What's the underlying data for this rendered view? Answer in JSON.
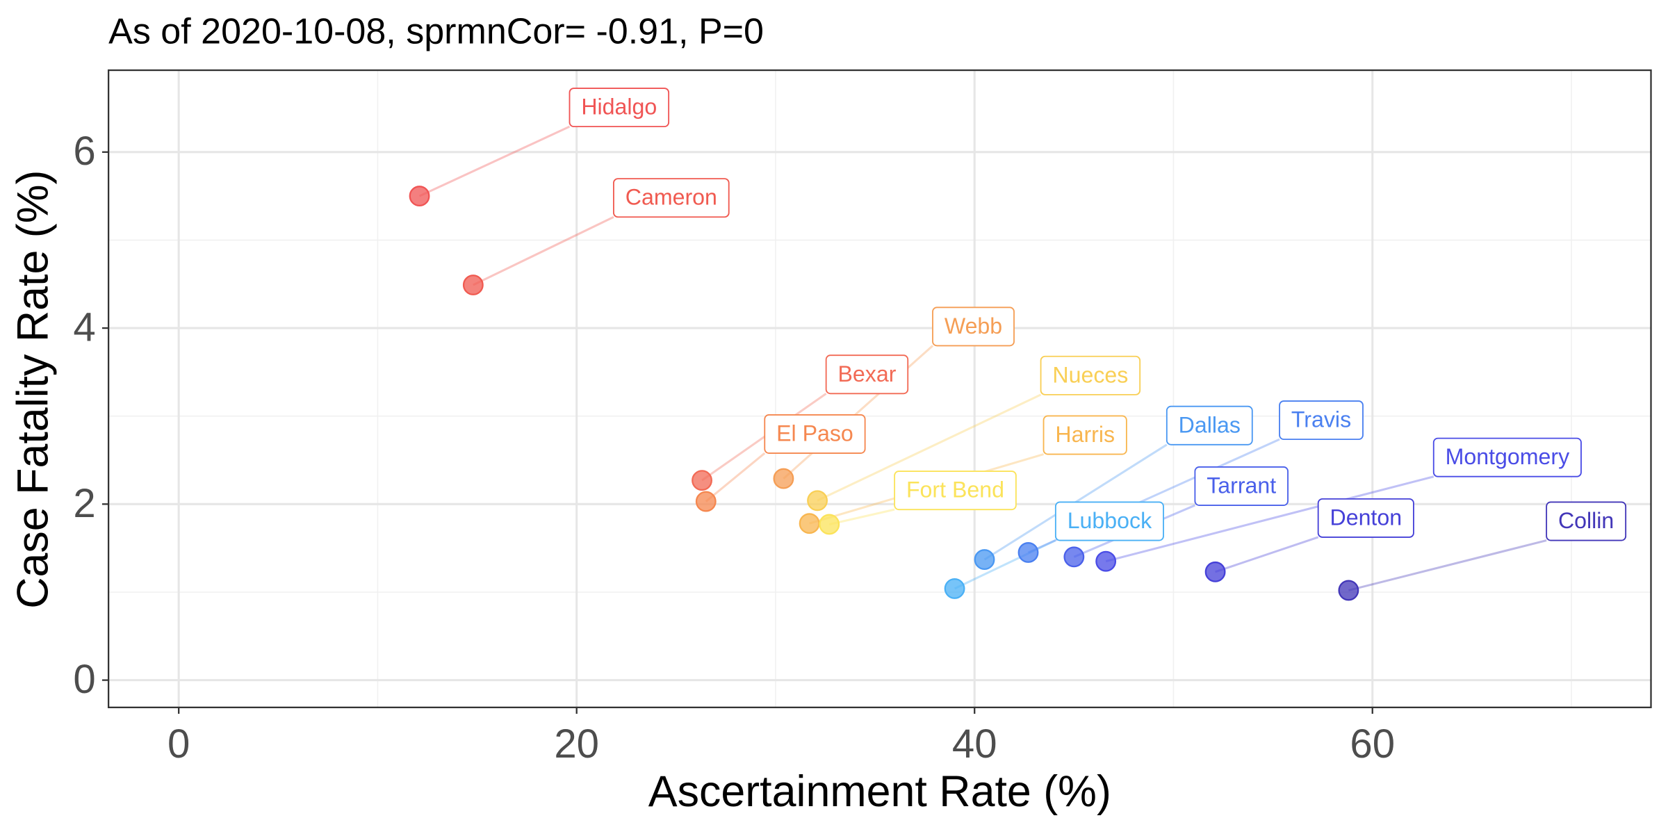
{
  "chart_data": {
    "type": "scatter",
    "title": "As of 2020-10-08, sprmnCor= -0.91, P=0",
    "x_label": "Ascertainment Rate (%)",
    "y_label": "Case Fatality Rate (%)",
    "labels": [
      "Hidalgo",
      "Cameron",
      "Bexar",
      "El Paso",
      "Webb",
      "Harris",
      "Nueces",
      "Fort Bend",
      "Lubbock",
      "Dallas",
      "Travis",
      "Tarrant",
      "Montgomery",
      "Denton",
      "Collin"
    ],
    "x": [
      12.1,
      14.8,
      26.3,
      26.5,
      30.4,
      31.7,
      32.1,
      32.7,
      39.0,
      40.5,
      42.7,
      45.0,
      46.6,
      52.1,
      58.8
    ],
    "y": [
      5.5,
      4.49,
      2.27,
      2.03,
      2.29,
      1.78,
      2.04,
      1.77,
      1.04,
      1.37,
      1.45,
      1.4,
      1.35,
      1.23,
      1.02
    ],
    "colors": [
      "#f05454",
      "#f05a50",
      "#f26a55",
      "#f5874f",
      "#f59e55",
      "#f8b650",
      "#f9cf55",
      "#fbe35a",
      "#4ab0f5",
      "#4a98f2",
      "#4a80f0",
      "#4a60ea",
      "#4a4ce6",
      "#4540d8",
      "#4236b8"
    ],
    "xlim": [
      -3.53,
      74.0
    ],
    "ylim": [
      -0.31,
      6.93
    ],
    "xticks": [
      0,
      20,
      40,
      60
    ],
    "yticks": [
      0,
      2,
      4,
      6
    ],
    "x_minor_grid": [
      10,
      30,
      50,
      70
    ],
    "y_minor_grid": [
      1,
      3,
      5
    ],
    "grid": true
  }
}
